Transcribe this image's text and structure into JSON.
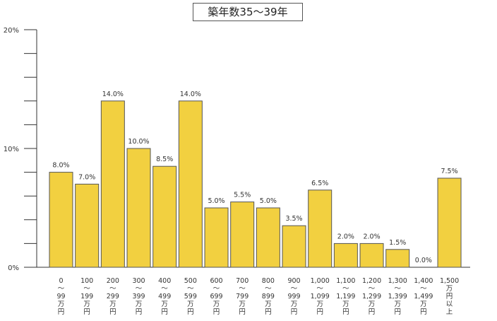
{
  "chart_data": {
    "type": "bar",
    "title": "築年数35～39年",
    "xlabel": "",
    "ylabel": "",
    "ylim": [
      0,
      20
    ],
    "yticks": [
      "0%",
      "10%",
      "20%"
    ],
    "grid": false,
    "legend": "none",
    "bar_color": "#f2d040",
    "bar_edge_color": "#555555",
    "categories": [
      [
        "0",
        "〜",
        "99",
        "万",
        "円"
      ],
      [
        "100",
        "〜",
        "199",
        "万",
        "円"
      ],
      [
        "200",
        "〜",
        "299",
        "万",
        "円"
      ],
      [
        "300",
        "〜",
        "399",
        "万",
        "円"
      ],
      [
        "400",
        "〜",
        "499",
        "万",
        "円"
      ],
      [
        "500",
        "〜",
        "599",
        "万",
        "円"
      ],
      [
        "600",
        "〜",
        "699",
        "万",
        "円"
      ],
      [
        "700",
        "〜",
        "799",
        "万",
        "円"
      ],
      [
        "800",
        "〜",
        "899",
        "万",
        "円"
      ],
      [
        "900",
        "〜",
        "999",
        "万",
        "円"
      ],
      [
        "1,000",
        "〜",
        "1,099",
        "万",
        "円"
      ],
      [
        "1,100",
        "〜",
        "1,199",
        "万",
        "円"
      ],
      [
        "1,200",
        "〜",
        "1,299",
        "万",
        "円"
      ],
      [
        "1,300",
        "〜",
        "1,399",
        "万",
        "円"
      ],
      [
        "1,400",
        "〜",
        "1,499",
        "万",
        "円"
      ],
      [
        "1,500",
        "万",
        "円",
        "以",
        "上"
      ]
    ],
    "values": [
      8.0,
      7.0,
      14.0,
      10.0,
      8.5,
      14.0,
      5.0,
      5.5,
      5.0,
      3.5,
      6.5,
      2.0,
      2.0,
      1.5,
      0.0,
      7.5
    ],
    "value_labels": [
      "8.0%",
      "7.0%",
      "14.0%",
      "10.0%",
      "8.5%",
      "14.0%",
      "5.0%",
      "5.5%",
      "5.0%",
      "3.5%",
      "6.5%",
      "2.0%",
      "2.0%",
      "1.5%",
      "0.0%",
      "7.5%"
    ]
  }
}
